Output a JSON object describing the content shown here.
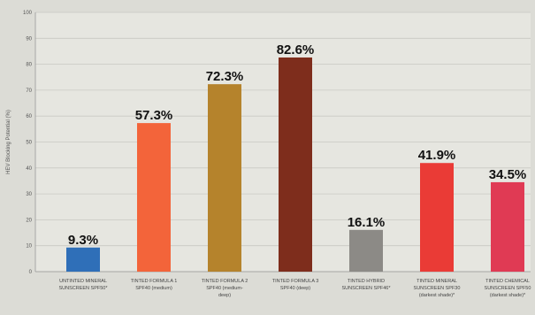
{
  "chart_data": {
    "type": "bar",
    "title": "",
    "xlabel": "",
    "ylabel": "HEV Blocking Potential (%)",
    "ylim": [
      0,
      100
    ],
    "yticks": [
      0,
      10,
      20,
      30,
      40,
      50,
      60,
      70,
      80,
      90,
      100
    ],
    "grid": true,
    "categories": [
      [
        "UNTINTED MINERAL",
        "SUNSCREEN SPF50*"
      ],
      [
        "TINTED FORMULA 1",
        "SPF40 (medium)"
      ],
      [
        "TINTED FORMULA 2",
        "SPF40 (medium-",
        "deep)"
      ],
      [
        "TINTED FORMULA 3",
        "SPF40 (deep)"
      ],
      [
        "TINTED HYBRID",
        "SUNSCREEN SPF46*"
      ],
      [
        "TINTED MINERAL",
        "SUNSCREEN SPF30",
        "(darkest shade)*"
      ],
      [
        "TINTED CHEMICAL",
        "SUNSCREEN SPF50",
        "(darkest shade)*"
      ]
    ],
    "values": [
      9.3,
      57.3,
      72.3,
      82.6,
      16.1,
      41.9,
      34.5
    ],
    "value_labels": [
      "9.3%",
      "57.3%",
      "72.3%",
      "82.6%",
      "16.1%",
      "41.9%",
      "34.5%"
    ],
    "colors": [
      "#2f6fb8",
      "#f3643a",
      "#b5832c",
      "#7e2d1c",
      "#8c8a86",
      "#ea3b36",
      "#e03a54"
    ]
  }
}
